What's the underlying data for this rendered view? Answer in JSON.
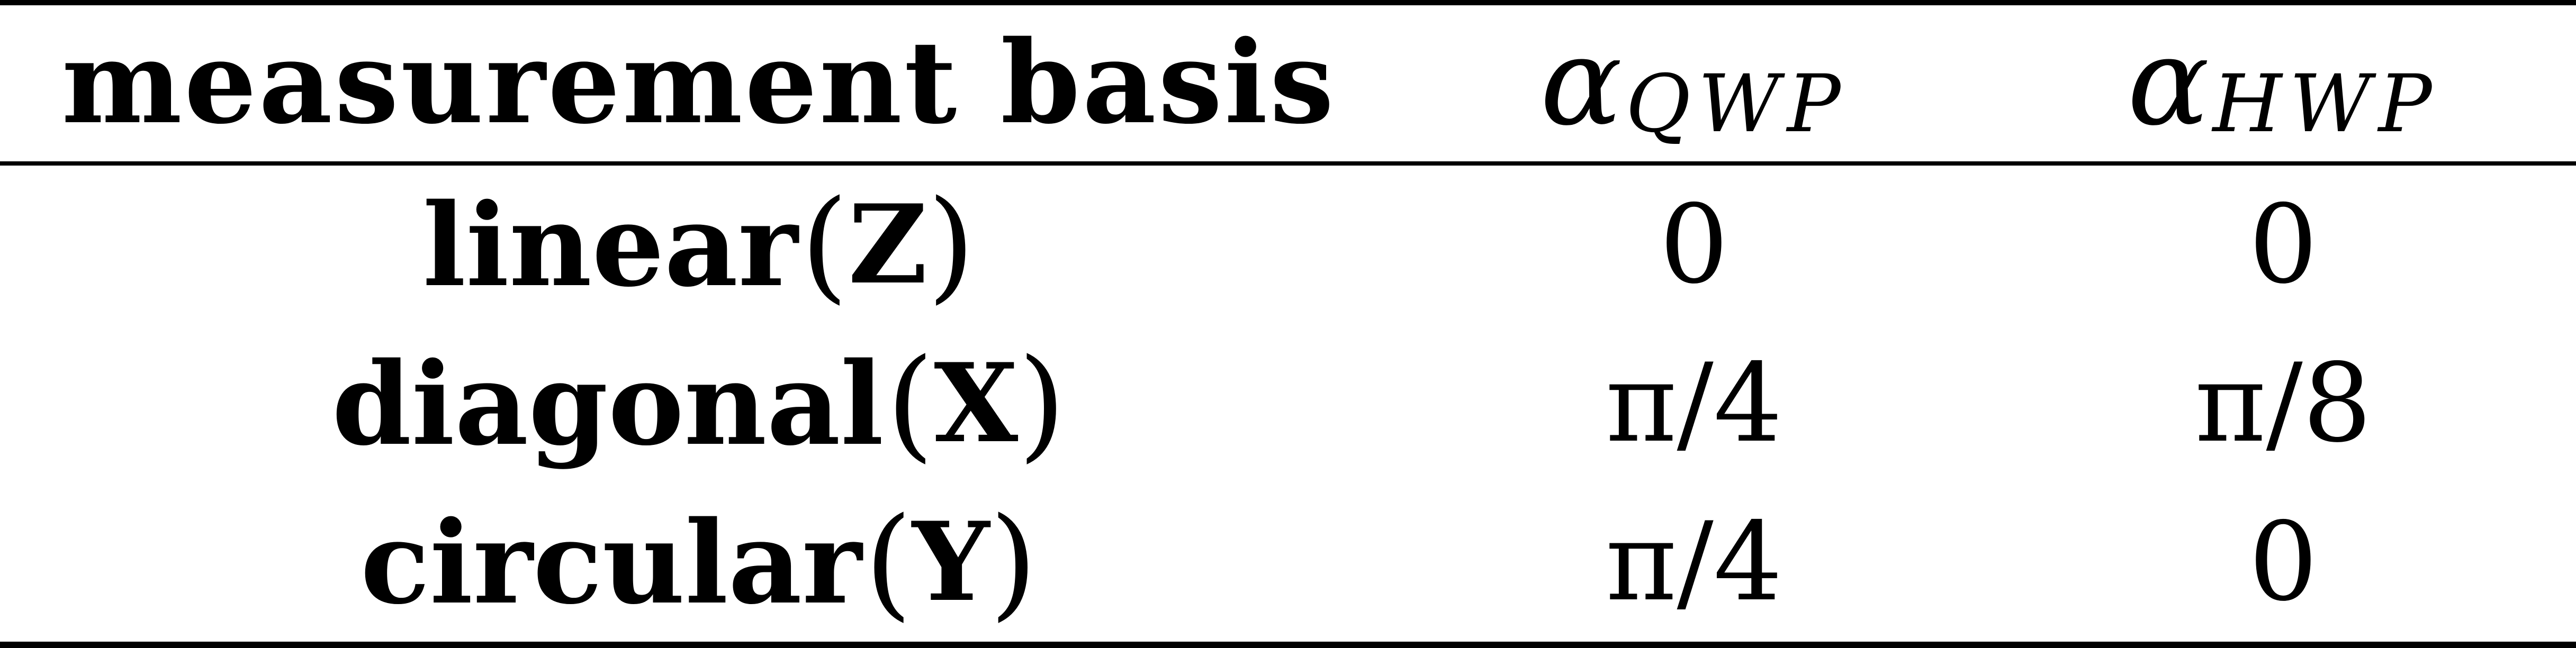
{
  "table": {
    "headers": {
      "basis": "measurement basis",
      "qwp_symbol": "α",
      "qwp_subscript": "QWP",
      "hwp_symbol": "α",
      "hwp_subscript": "HWP"
    },
    "rows": [
      {
        "basis_name": "linear",
        "basis_open": "(",
        "basis_letter": "Z",
        "basis_close": ")",
        "alpha_qwp": "0",
        "alpha_hwp": "0"
      },
      {
        "basis_name": "diagonal",
        "basis_open": "(",
        "basis_letter": "X",
        "basis_close": ")",
        "alpha_qwp": "π/4",
        "alpha_hwp": "π/8"
      },
      {
        "basis_name": "circular",
        "basis_open": "(",
        "basis_letter": "Y",
        "basis_close": ")",
        "alpha_qwp": "π/4",
        "alpha_hwp": "0"
      }
    ]
  }
}
